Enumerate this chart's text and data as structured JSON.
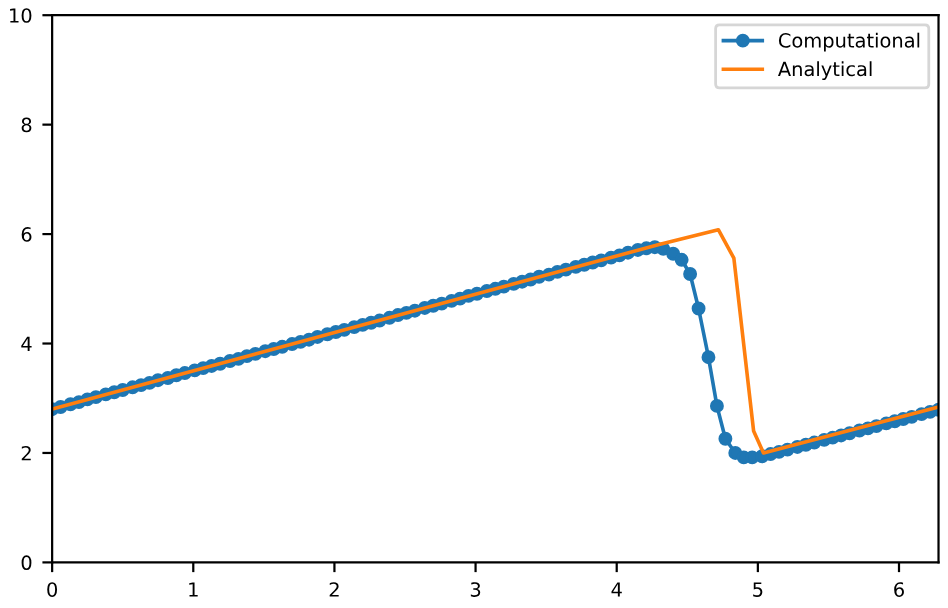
{
  "chart_data": {
    "type": "line",
    "xlim": [
      0,
      6.28
    ],
    "ylim": [
      0,
      10
    ],
    "xticks": [
      0,
      1,
      2,
      3,
      4,
      5,
      6
    ],
    "yticks": [
      0,
      2,
      4,
      6,
      8,
      10
    ],
    "grid": false,
    "legend": "top right",
    "series": [
      {
        "name": "Computational",
        "color": "#1f77b4",
        "marker": "circle",
        "line_style": "solid",
        "x": [
          0.0,
          0.06,
          0.13,
          0.19,
          0.25,
          0.31,
          0.38,
          0.44,
          0.5,
          0.57,
          0.63,
          0.69,
          0.75,
          0.82,
          0.88,
          0.94,
          1.01,
          1.07,
          1.13,
          1.19,
          1.26,
          1.32,
          1.38,
          1.44,
          1.51,
          1.57,
          1.63,
          1.7,
          1.76,
          1.82,
          1.88,
          1.95,
          2.01,
          2.07,
          2.14,
          2.2,
          2.26,
          2.32,
          2.39,
          2.45,
          2.51,
          2.57,
          2.64,
          2.7,
          2.76,
          2.83,
          2.89,
          2.95,
          3.01,
          3.08,
          3.14,
          3.2,
          3.27,
          3.33,
          3.39,
          3.45,
          3.52,
          3.58,
          3.64,
          3.71,
          3.77,
          3.83,
          3.89,
          3.96,
          4.02,
          4.08,
          4.15,
          4.21,
          4.27,
          4.33,
          4.4,
          4.46,
          4.52,
          4.58,
          4.65,
          4.71,
          4.77,
          4.84,
          4.9,
          4.96,
          5.03,
          5.09,
          5.15,
          5.21,
          5.28,
          5.34,
          5.4,
          5.47,
          5.53,
          5.59,
          5.65,
          5.72,
          5.78,
          5.84,
          5.91,
          5.97,
          6.03,
          6.09,
          6.16,
          6.22,
          6.28
        ],
        "values": [
          2.8,
          2.84,
          2.89,
          2.93,
          2.98,
          3.02,
          3.07,
          3.11,
          3.15,
          3.2,
          3.24,
          3.28,
          3.33,
          3.37,
          3.42,
          3.46,
          3.51,
          3.55,
          3.59,
          3.63,
          3.68,
          3.72,
          3.77,
          3.81,
          3.86,
          3.9,
          3.94,
          3.99,
          4.03,
          4.07,
          4.12,
          4.17,
          4.21,
          4.25,
          4.3,
          4.34,
          4.38,
          4.42,
          4.47,
          4.52,
          4.56,
          4.6,
          4.65,
          4.69,
          4.73,
          4.78,
          4.82,
          4.87,
          4.91,
          4.96,
          5.0,
          5.04,
          5.09,
          5.13,
          5.17,
          5.22,
          5.26,
          5.31,
          5.35,
          5.4,
          5.44,
          5.48,
          5.52,
          5.57,
          5.61,
          5.66,
          5.71,
          5.74,
          5.76,
          5.73,
          5.64,
          5.53,
          5.27,
          4.64,
          3.75,
          2.86,
          2.26,
          2.0,
          1.92,
          1.92,
          1.94,
          1.98,
          2.02,
          2.06,
          2.11,
          2.15,
          2.19,
          2.24,
          2.28,
          2.32,
          2.36,
          2.41,
          2.45,
          2.49,
          2.54,
          2.58,
          2.62,
          2.66,
          2.71,
          2.75,
          2.79
        ]
      },
      {
        "name": "Analytical",
        "color": "#ff7f0e",
        "marker": "none",
        "line_style": "solid",
        "x": [
          0,
          4.3,
          4.72,
          4.83,
          4.97,
          5.04,
          6.28
        ],
        "values": [
          2.8,
          5.81,
          6.08,
          5.56,
          2.4,
          2.0,
          2.84
        ]
      }
    ]
  }
}
